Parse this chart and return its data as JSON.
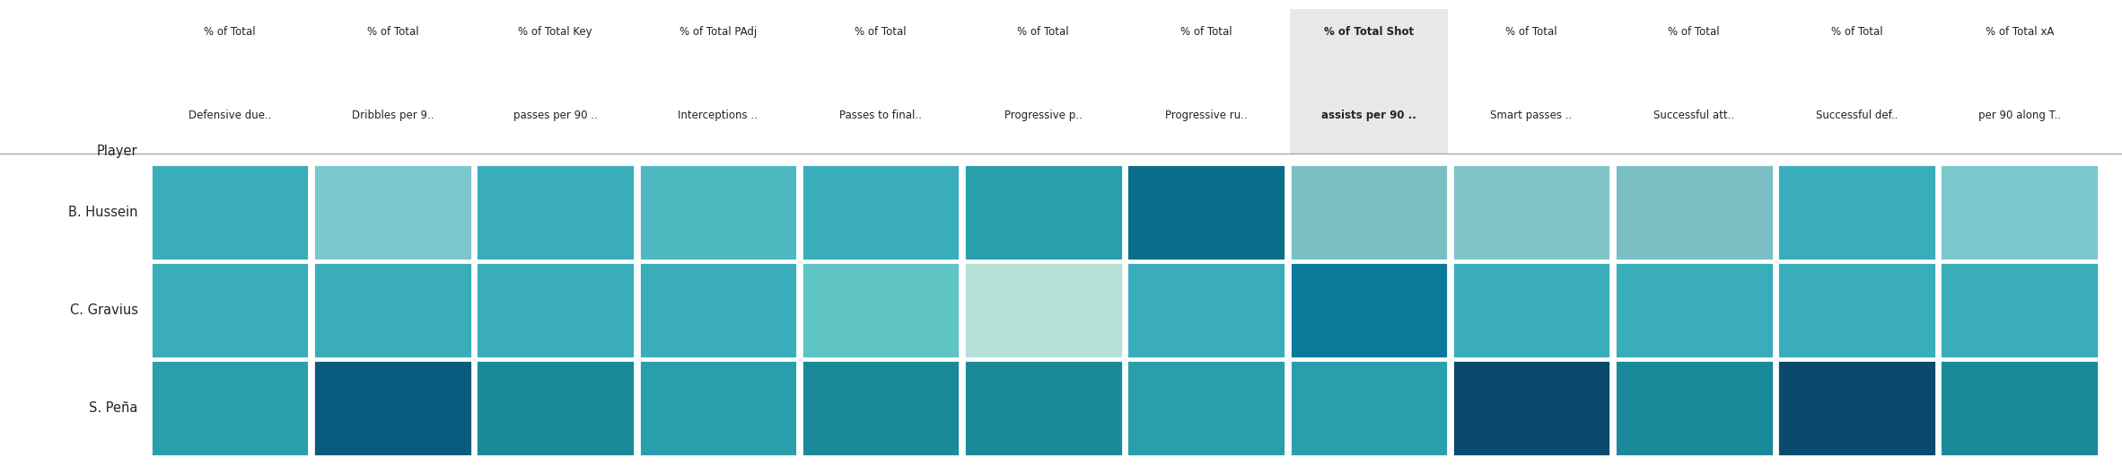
{
  "players": [
    "B. Hussein",
    "C. Gravius",
    "S. Peña"
  ],
  "col_labels_line1": [
    "% of Total",
    "% of Total",
    "% of Total Key",
    "% of Total PAdj",
    "% of Total",
    "% of Total",
    "% of Total",
    "% of Total Shot",
    "% of Total",
    "% of Total",
    "% of Total",
    "% of Total xA"
  ],
  "col_labels_line2": [
    "Defensive due..",
    "Dribbles per 9..",
    "passes per 90 ..",
    "Interceptions ..",
    "Passes to final..",
    "Progressive p..",
    "Progressive ru..",
    "assists per 90 ..",
    "Smart passes ..",
    "Successful att..",
    "Successful def..",
    "per 90 along T.."
  ],
  "bold_col": 7,
  "colors": [
    [
      "#3aadba",
      "#7ac8cc",
      "#3aadba",
      "#4db8bf",
      "#3aadba",
      "#29a0ae",
      "#0a6e8a",
      "#7abfc4",
      "#80c4c8",
      "#7abfc4",
      "#3aadba",
      "#7ac8cc"
    ],
    [
      "#3aadba",
      "#3aadba",
      "#3aadba",
      "#3aadba",
      "#5ec4c4",
      "#b5e0d8",
      "#3aadba",
      "#0a7a9a",
      "#3aadba",
      "#3aadba",
      "#3aadba",
      "#3aadba"
    ],
    [
      "#2a9fac",
      "#0a5c7e",
      "#1a8a9a",
      "#2a9fac",
      "#1a8a9a",
      "#1a8a9a",
      "#2a9fac",
      "#2a9fac",
      "#0a4a6e",
      "#1a8a9a",
      "#0a4a6e",
      "#1a8a9a"
    ]
  ],
  "background_color": "#ffffff",
  "figsize": [
    23.64,
    5.19
  ],
  "dpi": 100
}
